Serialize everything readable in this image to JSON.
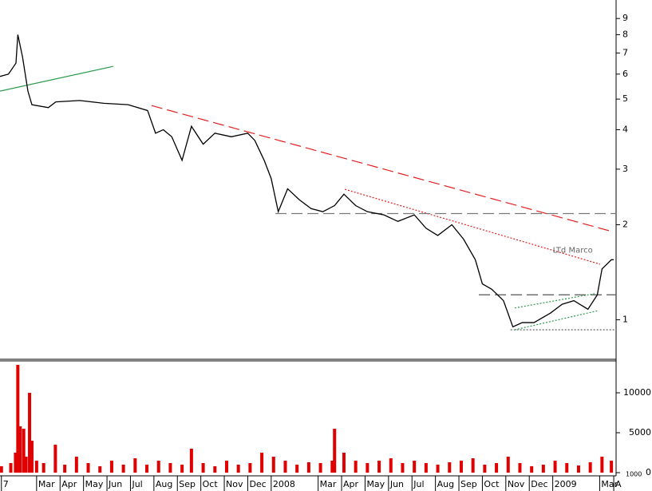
{
  "chart_data": {
    "type": "line",
    "log_scale": true,
    "grid": false,
    "xlim": [
      0.44,
      26.7
    ],
    "xticks": [
      {
        "value": 0.5,
        "label": "7"
      },
      {
        "value": 2,
        "label": "Mar"
      },
      {
        "value": 3,
        "label": "Apr"
      },
      {
        "value": 4,
        "label": "May"
      },
      {
        "value": 5,
        "label": "Jun"
      },
      {
        "value": 6,
        "label": "Jul"
      },
      {
        "value": 7,
        "label": "Aug"
      },
      {
        "value": 8,
        "label": "Sep"
      },
      {
        "value": 9,
        "label": "Oct"
      },
      {
        "value": 10,
        "label": "Nov"
      },
      {
        "value": 11,
        "label": "Dec"
      },
      {
        "value": 12,
        "label": "2008"
      },
      {
        "value": 14,
        "label": "Mar"
      },
      {
        "value": 15,
        "label": "Apr"
      },
      {
        "value": 16,
        "label": "May"
      },
      {
        "value": 17,
        "label": "Jun"
      },
      {
        "value": 18,
        "label": "Jul"
      },
      {
        "value": 19,
        "label": "Aug"
      },
      {
        "value": 20,
        "label": "Sep"
      },
      {
        "value": 21,
        "label": "Oct"
      },
      {
        "value": 22,
        "label": "Nov"
      },
      {
        "value": 23,
        "label": "Dec"
      },
      {
        "value": 24,
        "label": "2009"
      },
      {
        "value": 26,
        "label": "Mar"
      },
      {
        "value": 26.6,
        "label": "A"
      }
    ],
    "ylim": [
      0.75,
      10.3
    ],
    "yticks": [
      1,
      2,
      3,
      4,
      5,
      6,
      7,
      8,
      9
    ],
    "series": [
      {
        "color": "#000000",
        "x": [
          0.44,
          0.8,
          1.12,
          1.2,
          1.4,
          1.63,
          1.8,
          2.5,
          2.82,
          3.84,
          4.86,
          5.9,
          6.73,
          7.07,
          7.4,
          7.76,
          8.2,
          8.6,
          9.1,
          9.6,
          10.3,
          11.0,
          11.3,
          11.7,
          12.0,
          12.3,
          12.7,
          13.2,
          13.7,
          14.2,
          14.7,
          15.1,
          15.6,
          16.1,
          16.8,
          17.4,
          18.1,
          18.6,
          19.1,
          19.7,
          20.2,
          20.7,
          21.0,
          21.4,
          21.9,
          22.3,
          22.7,
          23.2,
          23.9,
          24.4,
          24.9,
          25.5,
          25.9,
          26.1,
          26.5,
          26.6
        ],
        "values": [
          5.9,
          6.0,
          6.5,
          8.0,
          6.8,
          5.3,
          4.8,
          4.7,
          4.9,
          4.95,
          4.85,
          4.8,
          4.6,
          3.9,
          4.0,
          3.8,
          3.2,
          4.1,
          3.6,
          3.9,
          3.8,
          3.9,
          3.7,
          3.2,
          2.8,
          2.2,
          2.6,
          2.4,
          2.25,
          2.2,
          2.3,
          2.5,
          2.3,
          2.2,
          2.15,
          2.05,
          2.15,
          1.95,
          1.85,
          2.0,
          1.8,
          1.55,
          1.3,
          1.25,
          1.15,
          0.95,
          0.98,
          0.98,
          1.05,
          1.12,
          1.15,
          1.08,
          1.2,
          1.45,
          1.55,
          1.55
        ]
      }
    ],
    "trendlines": [
      {
        "color": "#2e9a4e",
        "style": "solid",
        "x": [
          0.44,
          5.27
        ],
        "y": [
          5.3,
          6.35
        ]
      },
      {
        "color": "#e02020",
        "style": "dashed",
        "x": [
          6.9,
          26.46
        ],
        "y": [
          4.77,
          1.91
        ]
      },
      {
        "color": "#e02020",
        "style": "dotted",
        "x": [
          15.14,
          26.02
        ],
        "y": [
          2.59,
          1.5
        ]
      },
      {
        "color": "#777777",
        "style": "dashed",
        "x": [
          12.18,
          26.7
        ],
        "y": [
          2.17,
          2.17
        ]
      },
      {
        "color": "#555555",
        "style": "dashed",
        "x": [
          20.85,
          26.7
        ],
        "y": [
          1.2,
          1.2
        ]
      },
      {
        "color": "#555555",
        "style": "dotted",
        "x": [
          22.2,
          26.7
        ],
        "y": [
          0.93,
          0.93
        ]
      },
      {
        "color": "#2e9a4e",
        "style": "dotted",
        "x": [
          22.38,
          25.78
        ],
        "y": [
          1.09,
          1.21
        ]
      },
      {
        "color": "#2e9a4e",
        "style": "dotted",
        "x": [
          22.38,
          25.95
        ],
        "y": [
          0.93,
          1.07
        ]
      }
    ],
    "annotations": [
      {
        "text": "LTd Marco",
        "x": 24.0,
        "y": 1.66
      }
    ],
    "volume": {
      "color": "#e00000",
      "ylim": [
        0,
        14000
      ],
      "yticks": [
        0,
        5000,
        10000
      ],
      "unit_label": "1000",
      "x": [
        0.5,
        0.9,
        1.1,
        1.2,
        1.3,
        1.45,
        1.55,
        1.7,
        1.8,
        2.0,
        2.3,
        2.8,
        3.2,
        3.7,
        4.2,
        4.7,
        5.2,
        5.7,
        6.2,
        6.7,
        7.2,
        7.7,
        8.2,
        8.6,
        9.1,
        9.6,
        10.1,
        10.6,
        11.1,
        11.6,
        12.1,
        12.6,
        13.1,
        13.6,
        14.1,
        14.6,
        14.7,
        15.1,
        15.6,
        16.1,
        16.6,
        17.1,
        17.6,
        18.1,
        18.6,
        19.1,
        19.6,
        20.1,
        20.6,
        21.1,
        21.6,
        22.1,
        22.6,
        23.1,
        23.6,
        24.1,
        24.6,
        25.1,
        25.6,
        26.1,
        26.5
      ],
      "values": [
        800,
        1200,
        2500,
        13500,
        5800,
        5500,
        2000,
        10000,
        4000,
        1500,
        1200,
        3500,
        1000,
        2000,
        1200,
        800,
        1500,
        1000,
        1800,
        1000,
        1500,
        1200,
        1000,
        3000,
        1200,
        800,
        1500,
        1000,
        1200,
        2500,
        2000,
        1500,
        1000,
        1300,
        1200,
        1500,
        5500,
        2500,
        1500,
        1200,
        1500,
        1800,
        1200,
        1500,
        1200,
        1000,
        1300,
        1500,
        1800,
        1000,
        1200,
        2000,
        1200,
        800,
        1000,
        1500,
        1200,
        900,
        1300,
        2000,
        1500
      ]
    }
  }
}
